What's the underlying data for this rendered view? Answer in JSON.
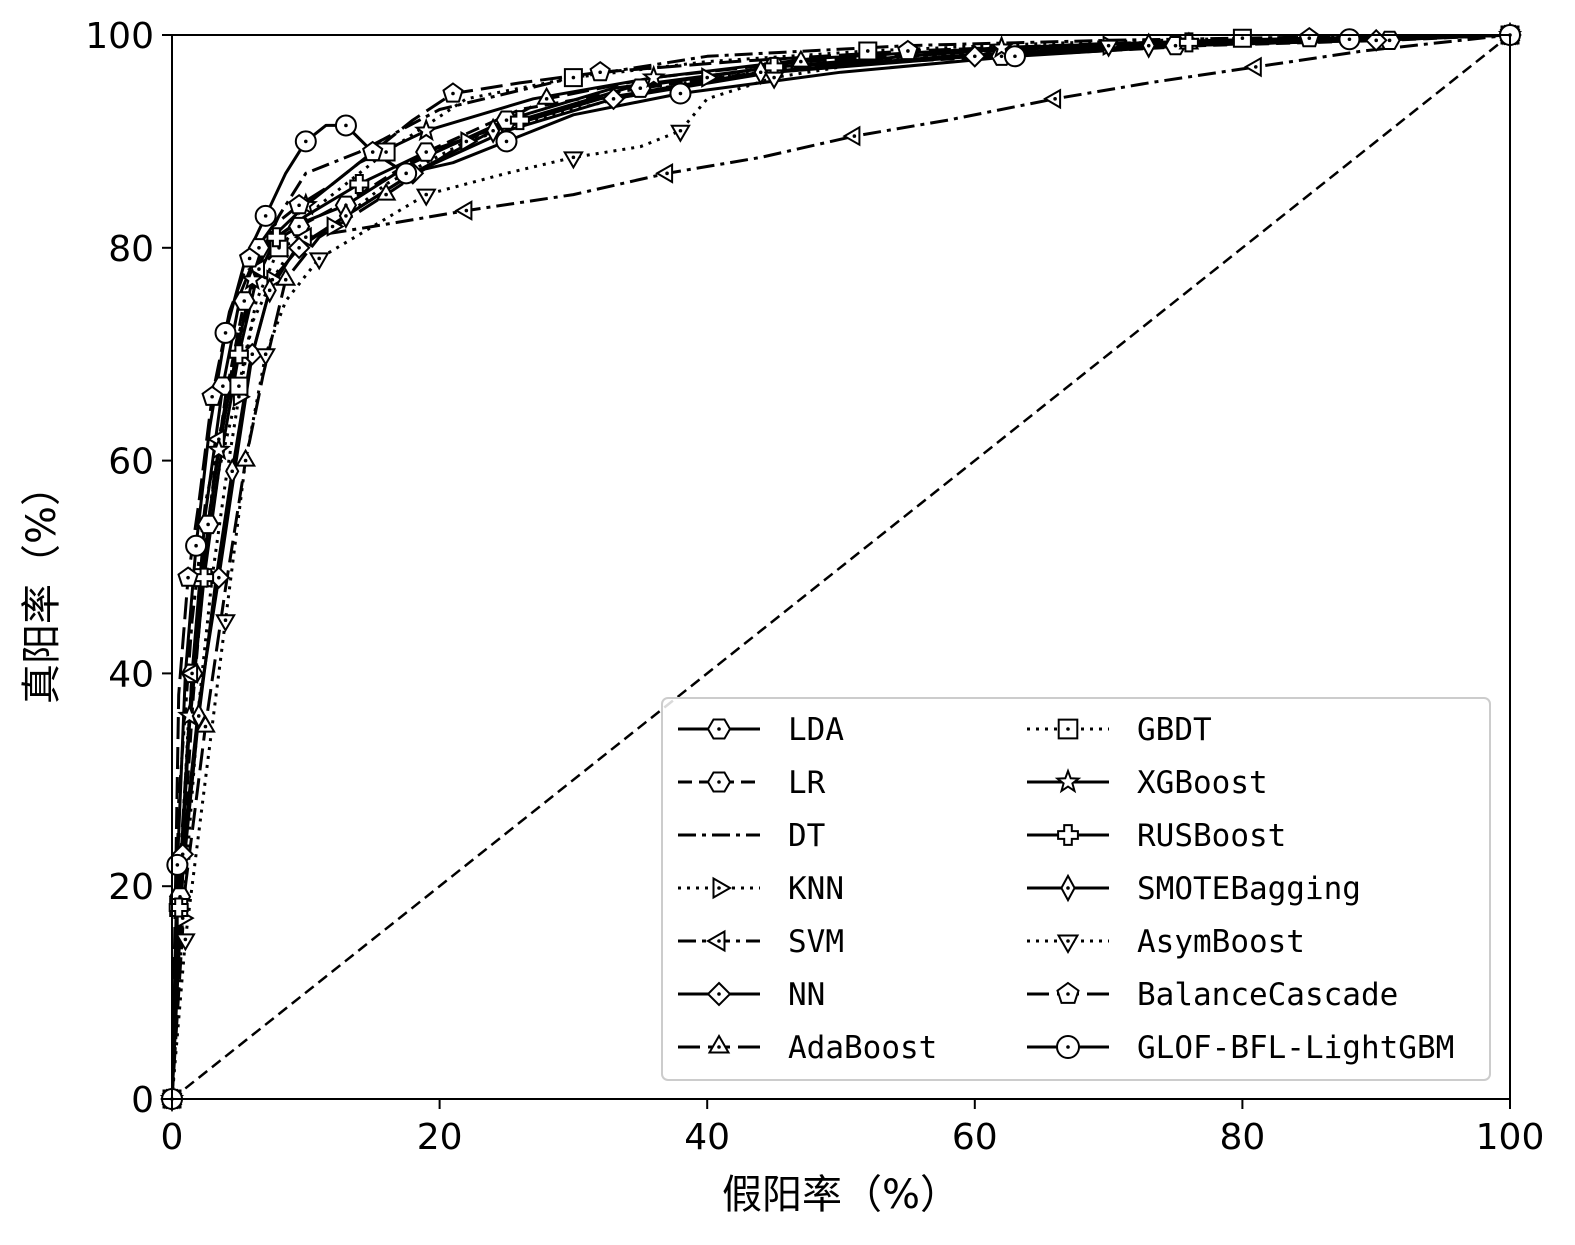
{
  "chart_data": {
    "type": "line",
    "title": "",
    "xlabel": "假阳率（%）",
    "ylabel": "真阳率（%）",
    "xlim": [
      0,
      100
    ],
    "ylim": [
      0,
      100
    ],
    "xticks": [
      "0",
      "20",
      "40",
      "60",
      "80",
      "100"
    ],
    "yticks": [
      "0",
      "20",
      "40",
      "60",
      "80",
      "100"
    ],
    "grid": false,
    "legend_position": "lower-right",
    "reference_line": {
      "x": [
        0,
        100
      ],
      "y": [
        0,
        100
      ],
      "style": "dashed"
    },
    "series": [
      {
        "name": "LDA",
        "marker": "hexagon",
        "dash": "solid",
        "x": [
          0,
          0.6,
          1.5,
          2.5,
          3.8,
          5.2,
          6.5,
          9,
          13,
          18,
          25,
          33,
          45,
          60,
          75,
          90,
          100
        ],
        "y": [
          0,
          20,
          40,
          55,
          67,
          76,
          80,
          82,
          84,
          88,
          92,
          95,
          97,
          98,
          99,
          99.5,
          100
        ]
      },
      {
        "name": "LR",
        "marker": "hexagon",
        "dash": "dashed",
        "x": [
          0,
          0.6,
          1.6,
          2.7,
          4,
          5.4,
          6.8,
          9.5,
          14,
          19,
          26,
          35,
          47,
          62,
          77,
          91,
          100
        ],
        "y": [
          0,
          19,
          38,
          54,
          66,
          75,
          80,
          82,
          85,
          89,
          93,
          95,
          97,
          98,
          99,
          99.5,
          100
        ]
      },
      {
        "name": "DT",
        "marker": "none",
        "dash": "dashdot",
        "x": [
          0,
          0.5,
          1.5,
          2.5,
          3.5,
          5,
          6.5,
          8,
          10,
          14,
          20,
          30,
          40,
          55,
          70,
          85,
          100
        ],
        "y": [
          0,
          28,
          45,
          56,
          62,
          70,
          79,
          83,
          87,
          89,
          93,
          96,
          98,
          99,
          99.5,
          99.8,
          100
        ]
      },
      {
        "name": "KNN",
        "marker": "triangle-right",
        "dash": "dotted",
        "x": [
          0,
          0.8,
          2,
          3,
          4,
          5,
          6,
          7.5,
          9,
          12,
          16,
          22,
          30,
          40,
          55,
          70,
          85,
          100
        ],
        "y": [
          0,
          17,
          37,
          49,
          58,
          66,
          73,
          77,
          80,
          82,
          86,
          90,
          93,
          96,
          98,
          99,
          99.5,
          100
        ]
      },
      {
        "name": "SVM",
        "marker": "triangle-left",
        "dash": "dashdot",
        "x": [
          0,
          0.6,
          1.5,
          2.5,
          3.5,
          5,
          6.5,
          8,
          10,
          15,
          22,
          30,
          37,
          44,
          51,
          58,
          66,
          73,
          81,
          89,
          100
        ],
        "y": [
          0,
          22,
          40,
          52,
          62,
          72,
          78,
          80,
          81,
          82,
          83.5,
          85,
          87,
          88.5,
          90.5,
          92,
          94,
          95.5,
          97,
          98.5,
          100
        ]
      },
      {
        "name": "NN",
        "marker": "diamond",
        "dash": "solid",
        "x": [
          0,
          0.8,
          2,
          3.5,
          4.8,
          6,
          7.5,
          9.5,
          13,
          18,
          25,
          33,
          45,
          60,
          75,
          90,
          100
        ],
        "y": [
          0,
          23,
          37,
          49,
          60,
          70,
          77,
          80,
          83,
          87,
          91,
          94,
          96.5,
          98,
          99,
          99.5,
          100
        ]
      },
      {
        "name": "AdaBoost",
        "marker": "triangle-up",
        "dash": "longdash",
        "x": [
          0,
          1,
          2.5,
          4,
          5.5,
          6.8,
          8.5,
          11,
          16,
          22,
          28,
          36,
          47,
          61,
          76,
          90,
          100
        ],
        "y": [
          0,
          20,
          35,
          48,
          60,
          68,
          77,
          81,
          85,
          90,
          94,
          96,
          97.5,
          98.5,
          99.2,
          99.7,
          100
        ]
      },
      {
        "name": "GBDT",
        "marker": "square",
        "dash": "dotted",
        "x": [
          0,
          0.5,
          1.2,
          2.3,
          3.5,
          5,
          6.3,
          8,
          11,
          16,
          22,
          30,
          40,
          52,
          65,
          80,
          100
        ],
        "y": [
          0,
          18,
          35,
          49,
          59,
          67,
          75,
          80,
          84,
          89,
          94,
          96,
          97.5,
          98.5,
          99.2,
          99.7,
          100
        ]
      },
      {
        "name": "XGBoost",
        "marker": "star",
        "dash": "solid",
        "x": [
          0,
          0.5,
          1.3,
          2.3,
          3.5,
          4.8,
          6,
          7.5,
          10,
          14,
          19,
          27,
          36,
          48,
          62,
          78,
          100
        ],
        "y": [
          0,
          19,
          36,
          50,
          61,
          70,
          77,
          81,
          84,
          88,
          91,
          94,
          96,
          97.8,
          98.8,
          99.5,
          100
        ]
      },
      {
        "name": "RUSBoost",
        "marker": "cross",
        "dash": "solid",
        "x": [
          0,
          0.5,
          1.3,
          2.4,
          3.6,
          5,
          6.3,
          7.8,
          10,
          14,
          19,
          26,
          34,
          45,
          60,
          76,
          100
        ],
        "y": [
          0,
          18,
          35,
          49,
          60,
          70,
          77,
          81,
          83,
          86,
          89,
          92,
          95,
          97,
          98.5,
          99.3,
          100
        ]
      },
      {
        "name": "SMOTEBagging",
        "marker": "diamond-thin",
        "dash": "solid",
        "x": [
          0,
          0.8,
          2,
          3.3,
          4.5,
          5.8,
          7.3,
          9.3,
          13,
          18,
          24,
          32,
          44,
          58,
          73,
          89,
          100
        ],
        "y": [
          0,
          21,
          36,
          49,
          59,
          69,
          76,
          80,
          83,
          87,
          91,
          94,
          96.5,
          98,
          99,
          99.5,
          100
        ]
      },
      {
        "name": "AsymBoost",
        "marker": "triangle-down",
        "dash": "dotted",
        "x": [
          0,
          1,
          2.5,
          4,
          5.5,
          7,
          8.5,
          11,
          15,
          19,
          25,
          30,
          35,
          38,
          40,
          45,
          55,
          70,
          85,
          100
        ],
        "y": [
          0,
          15,
          30,
          45,
          60,
          70,
          75,
          79,
          82,
          85,
          87,
          88.5,
          89.5,
          91,
          94,
          96,
          98,
          99,
          99.7,
          100
        ]
      },
      {
        "name": "BalanceCascade",
        "marker": "pentagon",
        "dash": "longdash",
        "x": [
          0,
          0.5,
          1.2,
          2,
          3,
          4.3,
          5.8,
          7.5,
          9.5,
          12,
          15,
          18,
          21,
          26,
          32,
          42,
          55,
          70,
          85,
          100
        ],
        "y": [
          0,
          38,
          49,
          56,
          66,
          74,
          79,
          82,
          84,
          86,
          89,
          92,
          94.5,
          95.5,
          96.5,
          97.5,
          98.5,
          99.2,
          99.7,
          100
        ]
      },
      {
        "name": "GLOF-BFL-LightGBM",
        "marker": "circle",
        "dash": "solid",
        "x": [
          0,
          0.4,
          1,
          1.8,
          2.8,
          4,
          5.5,
          7,
          8.5,
          10,
          11.5,
          13,
          15,
          17.5,
          21,
          25,
          30,
          38,
          50,
          63,
          76,
          88,
          100
        ],
        "y": [
          0,
          22,
          40,
          52,
          63,
          72,
          79,
          83,
          87,
          90,
          91.5,
          91.5,
          89,
          87,
          88,
          90,
          92.5,
          94.5,
          96.5,
          98,
          99,
          99.6,
          100
        ]
      }
    ]
  }
}
